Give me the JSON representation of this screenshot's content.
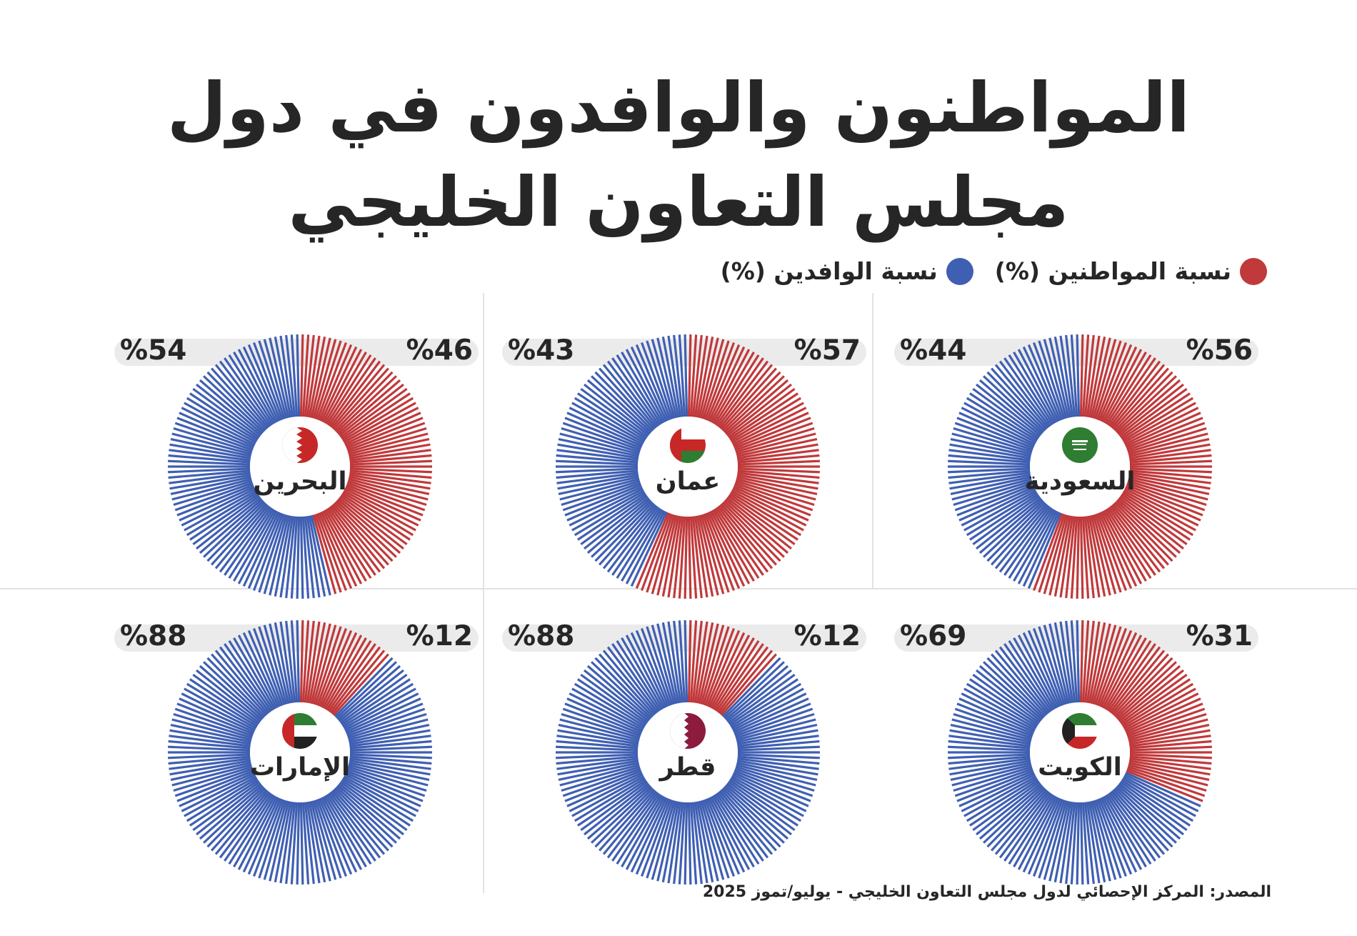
{
  "title": {
    "line1": "المواطنون والوافدون في دول",
    "line2": "مجلس التعاون الخليجي"
  },
  "legend": {
    "nationals": "نسبة المواطنين (%)",
    "expats": "نسبة الوافدين (%)"
  },
  "colors": {
    "nationals": "#c0393b",
    "expats": "#3f5fb2"
  },
  "source": "المصدر: المركز الإحصائي لدول مجلس التعاون الخليجي - يوليو/تموز 2025",
  "chart_data": [
    {
      "type": "pie",
      "country": "السعودية",
      "flag": "saudi-flag-icon",
      "nationals_label": "%56",
      "expats_label": "%44",
      "series": [
        {
          "name": "نسبة المواطنين (%)",
          "values": [
            56
          ]
        },
        {
          "name": "نسبة الوافدين (%)",
          "values": [
            44
          ]
        }
      ]
    },
    {
      "type": "pie",
      "country": "عمان",
      "flag": "oman-flag-icon",
      "nationals_label": "%57",
      "expats_label": "%43",
      "series": [
        {
          "name": "نسبة المواطنين (%)",
          "values": [
            57
          ]
        },
        {
          "name": "نسبة الوافدين (%)",
          "values": [
            43
          ]
        }
      ]
    },
    {
      "type": "pie",
      "country": "البحرين",
      "flag": "bahrain-flag-icon",
      "nationals_label": "%46",
      "expats_label": "%54",
      "series": [
        {
          "name": "نسبة المواطنين (%)",
          "values": [
            46
          ]
        },
        {
          "name": "نسبة الوافدين (%)",
          "values": [
            54
          ]
        }
      ]
    },
    {
      "type": "pie",
      "country": "الكويت",
      "flag": "kuwait-flag-icon",
      "nationals_label": "%31",
      "expats_label": "%69",
      "series": [
        {
          "name": "نسبة المواطنين (%)",
          "values": [
            31
          ]
        },
        {
          "name": "نسبة الوافدين (%)",
          "values": [
            69
          ]
        }
      ]
    },
    {
      "type": "pie",
      "country": "قطر",
      "flag": "qatar-flag-icon",
      "nationals_label": "%12",
      "expats_label": "%88",
      "series": [
        {
          "name": "نسبة المواطنين (%)",
          "values": [
            12
          ]
        },
        {
          "name": "نسبة الوافدين (%)",
          "values": [
            88
          ]
        }
      ]
    },
    {
      "type": "pie",
      "country": "الإمارات",
      "flag": "uae-flag-icon",
      "nationals_label": "%12",
      "expats_label": "%88",
      "series": [
        {
          "name": "نسبة المواطنين (%)",
          "values": [
            12
          ]
        },
        {
          "name": "نسبة الوافدين (%)",
          "values": [
            88
          ]
        }
      ]
    }
  ]
}
